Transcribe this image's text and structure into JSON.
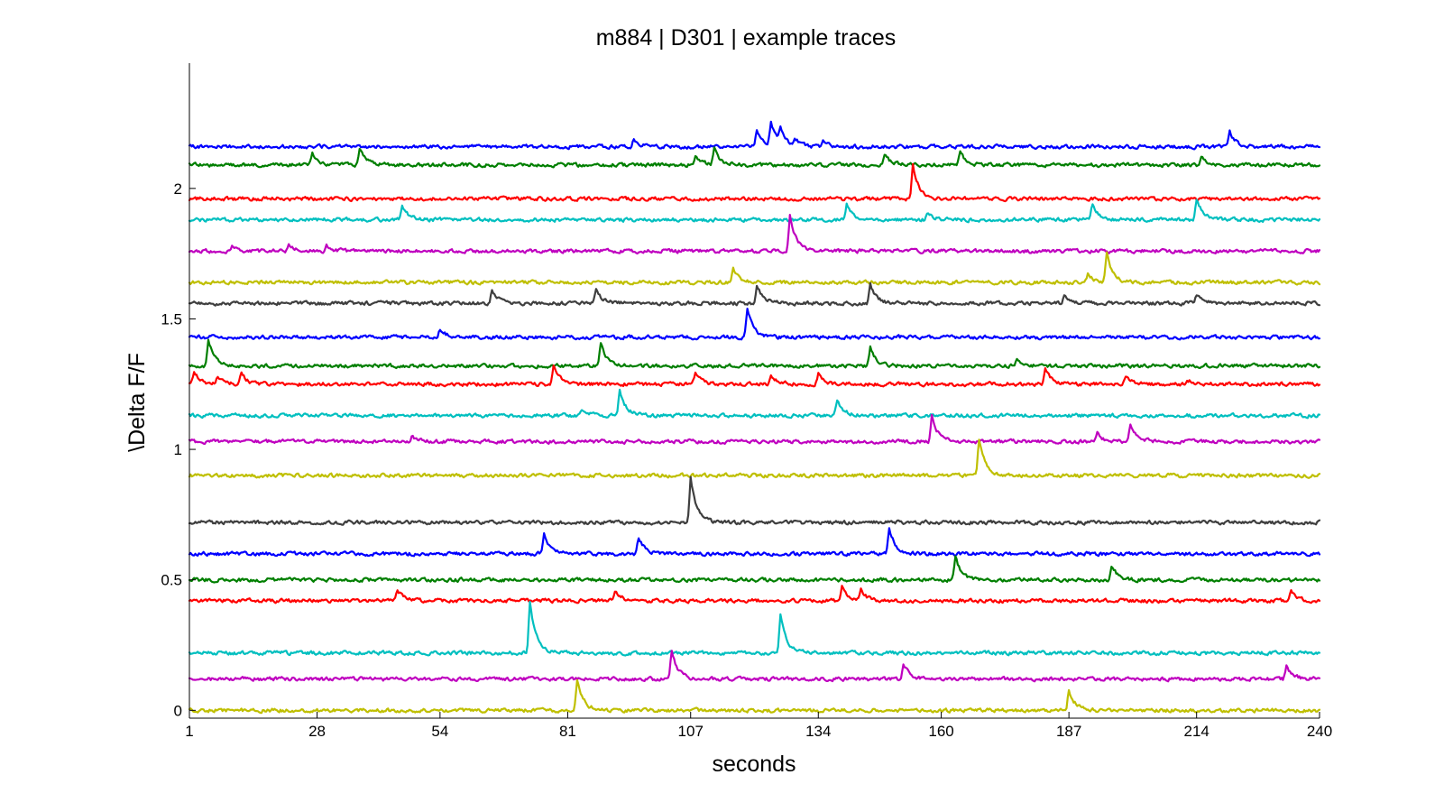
{
  "chart_data": {
    "type": "line",
    "title": "m884 | D301 | example traces",
    "xlabel": "seconds",
    "ylabel": "\\Delta F/F",
    "xlim": [
      1,
      240
    ],
    "ylim": [
      -0.03,
      2.48
    ],
    "x_ticks": [
      1,
      28,
      54,
      81,
      107,
      134,
      160,
      187,
      214,
      240
    ],
    "x_tick_labels": [
      "1",
      "28",
      "54",
      "81",
      "107",
      "134",
      "160",
      "187",
      "214",
      "240"
    ],
    "y_ticks": [
      0,
      0.5,
      1,
      1.5,
      2
    ],
    "y_tick_labels": [
      "0",
      "0.5",
      "1",
      "1.5",
      "2"
    ],
    "grid": false,
    "legend": "none",
    "series": [
      {
        "color": "#0000ff",
        "baseline": 2.16,
        "events": [
          [
            95,
            0.03
          ],
          [
            121,
            0.07
          ],
          [
            124,
            0.09
          ],
          [
            126,
            0.05
          ],
          [
            129,
            0.03
          ],
          [
            135,
            0.02
          ],
          [
            221,
            0.06
          ]
        ]
      },
      {
        "color": "#007f00",
        "baseline": 2.09,
        "events": [
          [
            27,
            0.05
          ],
          [
            37,
            0.06
          ],
          [
            108,
            0.04
          ],
          [
            112,
            0.06
          ],
          [
            148,
            0.04
          ],
          [
            164,
            0.05
          ],
          [
            215,
            0.03
          ]
        ]
      },
      {
        "color": "#ff0000",
        "baseline": 1.96,
        "events": [
          [
            154,
            0.13
          ]
        ]
      },
      {
        "color": "#00bfbf",
        "baseline": 1.88,
        "events": [
          [
            46,
            0.06
          ],
          [
            140,
            0.06
          ],
          [
            157,
            0.03
          ],
          [
            192,
            0.06
          ],
          [
            214,
            0.08
          ]
        ]
      },
      {
        "color": "#bf00bf",
        "baseline": 1.76,
        "events": [
          [
            10,
            0.02
          ],
          [
            22,
            0.03
          ],
          [
            30,
            0.02
          ],
          [
            128,
            0.14
          ]
        ]
      },
      {
        "color": "#bfbf00",
        "baseline": 1.64,
        "events": [
          [
            116,
            0.05
          ],
          [
            191,
            0.03
          ],
          [
            195,
            0.11
          ]
        ]
      },
      {
        "color": "#3f3f3f",
        "baseline": 1.56,
        "events": [
          [
            65,
            0.05
          ],
          [
            87,
            0.05
          ],
          [
            121,
            0.07
          ],
          [
            145,
            0.07
          ],
          [
            186,
            0.03
          ],
          [
            214,
            0.03
          ]
        ]
      },
      {
        "color": "#0000ff",
        "baseline": 1.43,
        "events": [
          [
            54,
            0.03
          ],
          [
            119,
            0.11
          ]
        ]
      },
      {
        "color": "#007f00",
        "baseline": 1.32,
        "events": [
          [
            5,
            0.1
          ],
          [
            88,
            0.09
          ],
          [
            145,
            0.07
          ],
          [
            176,
            0.03
          ]
        ]
      },
      {
        "color": "#ff0000",
        "baseline": 1.25,
        "events": [
          [
            2,
            0.05
          ],
          [
            7,
            0.03
          ],
          [
            12,
            0.04
          ],
          [
            78,
            0.07
          ],
          [
            108,
            0.04
          ],
          [
            124,
            0.04
          ],
          [
            134,
            0.04
          ],
          [
            182,
            0.06
          ],
          [
            199,
            0.03
          ],
          [
            212,
            0.02
          ]
        ]
      },
      {
        "color": "#00bfbf",
        "baseline": 1.13,
        "events": [
          [
            84,
            0.02
          ],
          [
            92,
            0.1
          ],
          [
            138,
            0.06
          ]
        ]
      },
      {
        "color": "#bf00bf",
        "baseline": 1.03,
        "events": [
          [
            48,
            0.02
          ],
          [
            158,
            0.1
          ],
          [
            193,
            0.03
          ],
          [
            200,
            0.07
          ]
        ]
      },
      {
        "color": "#bfbf00",
        "baseline": 0.9,
        "events": [
          [
            168,
            0.14
          ]
        ]
      },
      {
        "color": "#3f3f3f",
        "baseline": 0.72,
        "events": [
          [
            107,
            0.17
          ]
        ]
      },
      {
        "color": "#0000ff",
        "baseline": 0.6,
        "events": [
          [
            76,
            0.08
          ],
          [
            96,
            0.06
          ],
          [
            149,
            0.1
          ]
        ]
      },
      {
        "color": "#007f00",
        "baseline": 0.5,
        "events": [
          [
            163,
            0.09
          ],
          [
            196,
            0.06
          ]
        ]
      },
      {
        "color": "#ff0000",
        "baseline": 0.42,
        "events": [
          [
            45,
            0.04
          ],
          [
            91,
            0.04
          ],
          [
            139,
            0.06
          ],
          [
            143,
            0.04
          ],
          [
            234,
            0.04
          ]
        ]
      },
      {
        "color": "#00bfbf",
        "baseline": 0.22,
        "events": [
          [
            73,
            0.2
          ],
          [
            126,
            0.14
          ]
        ]
      },
      {
        "color": "#bf00bf",
        "baseline": 0.12,
        "events": [
          [
            103,
            0.11
          ],
          [
            152,
            0.06
          ],
          [
            233,
            0.05
          ]
        ]
      },
      {
        "color": "#bfbf00",
        "baseline": 0.0,
        "events": [
          [
            83,
            0.12
          ],
          [
            187,
            0.08
          ]
        ]
      }
    ]
  }
}
